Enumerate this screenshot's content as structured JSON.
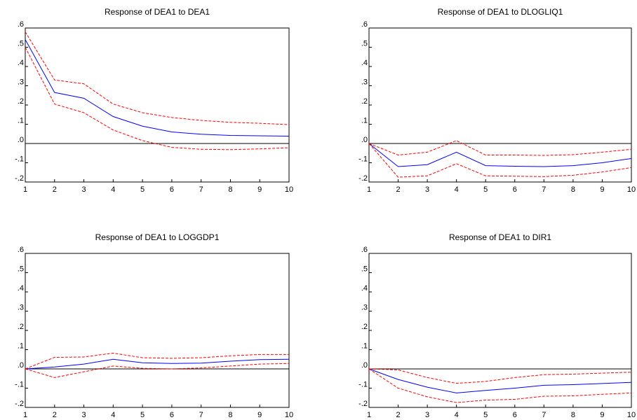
{
  "chart_data": [
    {
      "type": "line",
      "title": "Response of DEA1 to DEA1",
      "x": [
        1,
        2,
        3,
        4,
        5,
        6,
        7,
        8,
        9,
        10
      ],
      "xlim": [
        1,
        10
      ],
      "xticks": [
        1,
        2,
        3,
        4,
        5,
        6,
        7,
        8,
        9,
        10
      ],
      "ylim": [
        -0.2,
        0.6
      ],
      "yticks": [
        {
          "value": -0.2,
          "label": "-.2"
        },
        {
          "value": -0.1,
          "label": "-.1"
        },
        {
          "value": 0,
          "label": ".0"
        },
        {
          "value": 0.1,
          "label": ".1"
        },
        {
          "value": 0.2,
          "label": ".2"
        },
        {
          "value": 0.3,
          "label": ".3"
        },
        {
          "value": 0.4,
          "label": ".4"
        },
        {
          "value": 0.5,
          "label": ".5"
        },
        {
          "value": 0.6,
          "label": ".6"
        }
      ],
      "series": [
        {
          "color": "#0000ff",
          "dashed": false,
          "values": [
            0.54,
            0.265,
            0.235,
            0.14,
            0.09,
            0.06,
            0.048,
            0.042,
            0.04,
            0.038
          ]
        },
        {
          "color": "#ff0000",
          "dashed": true,
          "values": [
            0.58,
            0.33,
            0.31,
            0.205,
            0.16,
            0.135,
            0.12,
            0.11,
            0.105,
            0.098
          ]
        },
        {
          "color": "#ff0000",
          "dashed": true,
          "values": [
            0.5,
            0.205,
            0.16,
            0.07,
            0.015,
            -0.02,
            -0.03,
            -0.032,
            -0.028,
            -0.022
          ]
        }
      ]
    },
    {
      "type": "line",
      "title": "Response of DEA1 to DLOGLIQ1",
      "x": [
        1,
        2,
        3,
        4,
        5,
        6,
        7,
        8,
        9,
        10
      ],
      "xlim": [
        1,
        10
      ],
      "xticks": [
        1,
        2,
        3,
        4,
        5,
        6,
        7,
        8,
        9,
        10
      ],
      "ylim": [
        -0.2,
        0.6
      ],
      "yticks": [
        {
          "value": -0.2,
          "label": "-.2"
        },
        {
          "value": -0.1,
          "label": "-.1"
        },
        {
          "value": 0,
          "label": ".0"
        },
        {
          "value": 0.1,
          "label": ".1"
        },
        {
          "value": 0.2,
          "label": ".2"
        },
        {
          "value": 0.3,
          "label": ".3"
        },
        {
          "value": 0.4,
          "label": ".4"
        },
        {
          "value": 0.5,
          "label": ".5"
        },
        {
          "value": 0.6,
          "label": ".6"
        }
      ],
      "series": [
        {
          "color": "#0000ff",
          "dashed": false,
          "values": [
            0,
            -0.12,
            -0.11,
            -0.045,
            -0.115,
            -0.118,
            -0.12,
            -0.115,
            -0.1,
            -0.078
          ]
        },
        {
          "color": "#ff0000",
          "dashed": true,
          "values": [
            0,
            -0.06,
            -0.045,
            0.015,
            -0.06,
            -0.06,
            -0.062,
            -0.058,
            -0.045,
            -0.03
          ]
        },
        {
          "color": "#ff0000",
          "dashed": true,
          "values": [
            0,
            -0.175,
            -0.168,
            -0.105,
            -0.168,
            -0.17,
            -0.172,
            -0.165,
            -0.148,
            -0.125
          ]
        }
      ]
    },
    {
      "type": "line",
      "title": "Response of DEA1 to LOGGDP1",
      "x": [
        1,
        2,
        3,
        4,
        5,
        6,
        7,
        8,
        9,
        10
      ],
      "xlim": [
        1,
        10
      ],
      "xticks": [
        1,
        2,
        3,
        4,
        5,
        6,
        7,
        8,
        9,
        10
      ],
      "ylim": [
        -0.2,
        0.6
      ],
      "yticks": [
        {
          "value": -0.2,
          "label": "-.2"
        },
        {
          "value": -0.1,
          "label": "-.1"
        },
        {
          "value": 0,
          "label": ".0"
        },
        {
          "value": 0.1,
          "label": ".1"
        },
        {
          "value": 0.2,
          "label": ".2"
        },
        {
          "value": 0.3,
          "label": ".3"
        },
        {
          "value": 0.4,
          "label": ".4"
        },
        {
          "value": 0.5,
          "label": ".5"
        },
        {
          "value": 0.6,
          "label": ".6"
        }
      ],
      "series": [
        {
          "color": "#0000ff",
          "dashed": false,
          "values": [
            0,
            0.01,
            0.025,
            0.05,
            0.032,
            0.028,
            0.03,
            0.04,
            0.048,
            0.05
          ]
        },
        {
          "color": "#ff0000",
          "dashed": true,
          "values": [
            0,
            0.06,
            0.062,
            0.082,
            0.058,
            0.055,
            0.058,
            0.068,
            0.075,
            0.075
          ]
        },
        {
          "color": "#ff0000",
          "dashed": true,
          "values": [
            0,
            -0.045,
            -0.015,
            0.015,
            0.003,
            0,
            0.005,
            0.015,
            0.025,
            0.028
          ]
        }
      ]
    },
    {
      "type": "line",
      "title": "Response of DEA1 to DIR1",
      "x": [
        1,
        2,
        3,
        4,
        5,
        6,
        7,
        8,
        9,
        10
      ],
      "xlim": [
        1,
        10
      ],
      "xticks": [
        1,
        2,
        3,
        4,
        5,
        6,
        7,
        8,
        9,
        10
      ],
      "ylim": [
        -0.2,
        0.6
      ],
      "yticks": [
        {
          "value": -0.2,
          "label": "-.2"
        },
        {
          "value": -0.1,
          "label": "-.1"
        },
        {
          "value": 0,
          "label": ".0"
        },
        {
          "value": 0.1,
          "label": ".1"
        },
        {
          "value": 0.2,
          "label": ".2"
        },
        {
          "value": 0.3,
          "label": ".3"
        },
        {
          "value": 0.4,
          "label": ".4"
        },
        {
          "value": 0.5,
          "label": ".5"
        },
        {
          "value": 0.6,
          "label": ".6"
        }
      ],
      "series": [
        {
          "color": "#0000ff",
          "dashed": false,
          "values": [
            0,
            -0.055,
            -0.095,
            -0.125,
            -0.112,
            -0.1,
            -0.085,
            -0.082,
            -0.076,
            -0.07
          ]
        },
        {
          "color": "#ff0000",
          "dashed": true,
          "values": [
            0,
            -0.005,
            -0.045,
            -0.075,
            -0.065,
            -0.045,
            -0.03,
            -0.027,
            -0.022,
            -0.017
          ]
        },
        {
          "color": "#ff0000",
          "dashed": true,
          "values": [
            0,
            -0.1,
            -0.145,
            -0.175,
            -0.162,
            -0.158,
            -0.142,
            -0.14,
            -0.132,
            -0.125
          ]
        }
      ]
    }
  ]
}
